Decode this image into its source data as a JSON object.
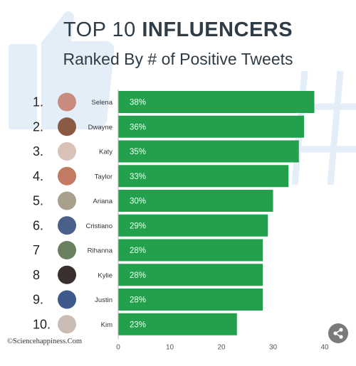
{
  "title_light": "TOP 10 ",
  "title_bold": "INFLUENCERS",
  "subtitle": "Ranked By # of Positive Tweets",
  "copyright": "©Sciencehappiness.Com",
  "colors": {
    "bar": "#22a04b",
    "title": "#2f3b45",
    "deco": "#e3eef8"
  },
  "chart_data": {
    "type": "bar",
    "orientation": "horizontal",
    "ranks": [
      "1.",
      "2.",
      "3.",
      "4.",
      "5.",
      "6.",
      "7",
      "8",
      "9.",
      "10."
    ],
    "categories": [
      "Selena",
      "Dwayne",
      "Katy",
      "Taylor",
      "Ariana",
      "Cristiano",
      "Rihanna",
      "Kylie",
      "Justin",
      "Kim"
    ],
    "values": [
      38,
      36,
      35,
      33,
      30,
      29,
      28,
      28,
      28,
      23
    ],
    "value_labels": [
      "38%",
      "36%",
      "35%",
      "33%",
      "30%",
      "29%",
      "28%",
      "28%",
      "28%",
      "23%"
    ],
    "xticks": [
      0,
      10,
      20,
      30,
      40
    ],
    "xlim": [
      0,
      40
    ],
    "avatar_colors": [
      "#c98b7e",
      "#8a5a44",
      "#d9c2b8",
      "#c27a62",
      "#a8a08c",
      "#4a5f8a",
      "#6b8060",
      "#3a3030",
      "#3f5a8a",
      "#c9bdb6"
    ],
    "grid": false,
    "legend": "none"
  }
}
